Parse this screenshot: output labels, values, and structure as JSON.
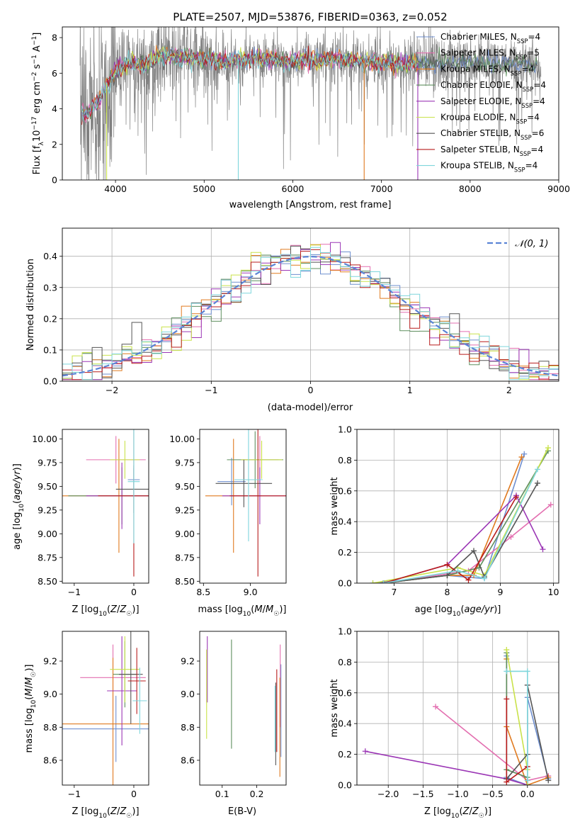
{
  "figure": {
    "title": "PLATE=2507, MJD=53876, FIBERID=0363, z=0.052"
  },
  "models": [
    {
      "name": "Chabrier MILES",
      "nssp": "4",
      "color": "#6f8fcf"
    },
    {
      "name": "Salpeter MILES",
      "nssp": "5",
      "color": "#e36fb0"
    },
    {
      "name": "Kroupa MILES",
      "nssp": "4",
      "color": "#e07a1f"
    },
    {
      "name": "Chabrier ELODIE",
      "nssp": "4",
      "color": "#5f8f5f"
    },
    {
      "name": "Salpeter ELODIE",
      "nssp": "4",
      "color": "#9b36b5"
    },
    {
      "name": "Kroupa ELODIE",
      "nssp": "4",
      "color": "#c9e24a"
    },
    {
      "name": "Chabrier STELIB",
      "nssp": "6",
      "color": "#555555"
    },
    {
      "name": "Salpeter STELIB",
      "nssp": "4",
      "color": "#b81c1c"
    },
    {
      "name": "Kroupa STELIB",
      "nssp": "4",
      "color": "#7fd6dc"
    }
  ],
  "chart_data": [
    {
      "id": "spectrum",
      "type": "line",
      "title": "PLATE=2507, MJD=53876, FIBERID=0363, z=0.052",
      "xlabel": "wavelength [Angstrom, rest frame]",
      "ylabel": "Flux [f_λ 10^-17 erg cm^-2 s^-1 A^-1]",
      "xlim": [
        3400,
        9000
      ],
      "ylim": [
        0,
        8.6
      ],
      "xticks": [
        4000,
        5000,
        6000,
        7000,
        8000,
        9000
      ],
      "yticks": [
        0,
        2,
        4,
        6,
        8
      ],
      "data_color": "#808080",
      "model_color": "#7fd6dc",
      "data_range": [
        3600,
        8800
      ],
      "continuum": [
        [
          3600,
          3.6
        ],
        [
          3700,
          3.9
        ],
        [
          3800,
          4.4
        ],
        [
          3900,
          5.4
        ],
        [
          4000,
          6.1
        ],
        [
          4100,
          6.5
        ],
        [
          4200,
          6.7
        ],
        [
          4300,
          6.5
        ],
        [
          4400,
          6.8
        ],
        [
          4500,
          7.0
        ],
        [
          4600,
          7.0
        ],
        [
          4700,
          6.9
        ],
        [
          4800,
          7.0
        ],
        [
          4900,
          6.8
        ],
        [
          5000,
          6.8
        ],
        [
          5100,
          6.9
        ],
        [
          5200,
          6.6
        ],
        [
          5300,
          6.7
        ],
        [
          5400,
          6.8
        ],
        [
          5500,
          6.9
        ],
        [
          5600,
          6.9
        ],
        [
          5700,
          6.8
        ],
        [
          5800,
          6.8
        ],
        [
          5900,
          6.7
        ],
        [
          6000,
          6.7
        ],
        [
          6100,
          6.8
        ],
        [
          6200,
          6.8
        ],
        [
          6300,
          6.7
        ],
        [
          6400,
          6.8
        ],
        [
          6500,
          6.8
        ],
        [
          6600,
          6.8
        ],
        [
          6700,
          6.7
        ],
        [
          6800,
          6.7
        ],
        [
          6900,
          6.7
        ],
        [
          7000,
          6.6
        ],
        [
          7100,
          6.6
        ],
        [
          7200,
          6.6
        ],
        [
          7400,
          6.6
        ],
        [
          7600,
          6.6
        ],
        [
          7800,
          6.6
        ],
        [
          8000,
          6.6
        ],
        [
          8200,
          6.6
        ],
        [
          8400,
          6.5
        ],
        [
          8600,
          6.5
        ],
        [
          8800,
          6.4
        ]
      ],
      "legend_position": "upper right",
      "grid": false
    },
    {
      "id": "residuals",
      "type": "line",
      "xlabel": "(data-model)/error",
      "ylabel": "Normed distribution",
      "xlim": [
        -2.5,
        2.5
      ],
      "ylim": [
        0,
        0.49
      ],
      "xticks": [
        -2,
        -1,
        0,
        1,
        2
      ],
      "yticks": [
        0.0,
        0.1,
        0.2,
        0.3,
        0.4
      ],
      "bin_width": 0.1,
      "reference_curve": "gaussian(0,1)",
      "reference_label": "𝒩(0, 1)",
      "reference_color": "#5b84d6",
      "legend_position": "upper right",
      "grid": true
    },
    {
      "id": "age_vs_Z",
      "type": "scatter",
      "xlabel": "Z [log10(Z/Z☉)]",
      "ylabel": "age  [log10(age/yr)]",
      "xlim": [
        -1.2,
        0.25
      ],
      "ylim": [
        8.48,
        10.1
      ],
      "xticks": [
        -1,
        0
      ],
      "yticks": [
        8.5,
        8.75,
        9.0,
        9.25,
        9.5,
        9.75,
        10.0
      ],
      "points": [
        {
          "x": 0.0,
          "y": 9.57,
          "xerr": 0.1,
          "yerr": 0.12
        },
        {
          "x": -0.3,
          "y": 9.78,
          "xerr": 0.5,
          "yerr": 0.25
        },
        {
          "x": -0.25,
          "y": 9.4,
          "xerr": 1.0,
          "yerr": 0.6
        },
        {
          "x": -0.2,
          "y": 9.4,
          "xerr": 0.9,
          "yerr": 0.3
        },
        {
          "x": -0.2,
          "y": 9.4,
          "xerr": 0.6,
          "yerr": 0.35
        },
        {
          "x": -0.15,
          "y": 9.78,
          "xerr": 0.25,
          "yerr": 0.2
        },
        {
          "x": 0.0,
          "y": 9.47,
          "xerr": 0.3,
          "yerr": 0.25
        },
        {
          "x": 0.0,
          "y": 9.4,
          "xerr": 0.6,
          "yerr": 0.85
        },
        {
          "x": 0.0,
          "y": 9.55,
          "xerr": 0.1,
          "yerr": 0.65
        }
      ],
      "grid": false
    },
    {
      "id": "age_vs_mass",
      "type": "scatter",
      "xlabel": "mass [log10(M/M☉)]",
      "ylabel": "",
      "xlim": [
        8.46,
        9.38
      ],
      "ylim": [
        8.48,
        10.1
      ],
      "xticks": [
        8.5,
        9.0
      ],
      "yticks": [
        8.5,
        8.75,
        9.0,
        9.25,
        9.5,
        9.75,
        10.0
      ],
      "points": [
        {
          "x": 8.8,
          "y": 9.55,
          "xerr": 0.15,
          "yerr": 0.25
        },
        {
          "x": 9.1,
          "y": 9.78,
          "xerr": 0.2,
          "yerr": 0.25
        },
        {
          "x": 8.82,
          "y": 9.4,
          "xerr": 0.3,
          "yerr": 0.6
        },
        {
          "x": 9.05,
          "y": 9.78,
          "xerr": 0.3,
          "yerr": 0.3
        },
        {
          "x": 9.1,
          "y": 9.4,
          "xerr": 0.4,
          "yerr": 0.3
        },
        {
          "x": 9.12,
          "y": 9.78,
          "xerr": 0.22,
          "yerr": 0.2
        },
        {
          "x": 8.93,
          "y": 9.53,
          "xerr": 0.3,
          "yerr": 0.25
        },
        {
          "x": 9.08,
          "y": 9.4,
          "xerr": 0.3,
          "yerr": 0.85
        },
        {
          "x": 8.98,
          "y": 9.57,
          "xerr": 0.15,
          "yerr": 0.65
        }
      ],
      "grid": false
    },
    {
      "id": "weight_vs_age",
      "type": "line",
      "xlabel": "age  [log10(age/yr)]",
      "ylabel": "mass weight",
      "xlim": [
        6.3,
        10.1
      ],
      "ylim": [
        0,
        1.0
      ],
      "xticks": [
        7,
        8,
        9,
        10
      ],
      "yticks": [
        0.0,
        0.2,
        0.4,
        0.6,
        0.8,
        1.0
      ],
      "series": [
        {
          "x": [
            6.6,
            8.0,
            8.7,
            9.45
          ],
          "y": [
            0.0,
            0.05,
            0.03,
            0.84
          ]
        },
        {
          "x": [
            6.8,
            8.4,
            9.2,
            9.95
          ],
          "y": [
            0.0,
            0.08,
            0.3,
            0.51
          ]
        },
        {
          "x": [
            6.8,
            8.0,
            8.5,
            9.4
          ],
          "y": [
            0.0,
            0.05,
            0.05,
            0.82
          ]
        },
        {
          "x": [
            6.8,
            8.0,
            8.6,
            9.9
          ],
          "y": [
            0.0,
            0.05,
            0.1,
            0.86
          ]
        },
        {
          "x": [
            6.8,
            8.0,
            9.3,
            9.8
          ],
          "y": [
            0.0,
            0.12,
            0.57,
            0.22
          ]
        },
        {
          "x": [
            6.6,
            8.2,
            8.7,
            9.9
          ],
          "y": [
            0.0,
            0.1,
            0.05,
            0.88
          ]
        },
        {
          "x": [
            6.8,
            8.0,
            8.5,
            8.7,
            9.7
          ],
          "y": [
            0.0,
            0.05,
            0.21,
            0.04,
            0.65
          ]
        },
        {
          "x": [
            6.8,
            8.0,
            8.4,
            9.3
          ],
          "y": [
            0.0,
            0.12,
            0.02,
            0.56
          ]
        },
        {
          "x": [
            6.8,
            8.2,
            8.7,
            9.7
          ],
          "y": [
            0.0,
            0.08,
            0.03,
            0.74
          ]
        }
      ],
      "grid": true
    },
    {
      "id": "mass_vs_Z",
      "type": "scatter",
      "xlabel": "Z [log10(Z/Z☉)]",
      "ylabel": "mass [log10(M/M☉)]",
      "xlim": [
        -1.2,
        0.25
      ],
      "ylim": [
        8.45,
        9.38
      ],
      "xticks": [
        -1,
        0
      ],
      "yticks": [
        8.6,
        8.8,
        9.0,
        9.2
      ],
      "points": [
        {
          "x": -0.3,
          "y": 8.79,
          "xerr": 0.9,
          "yerr": 0.2
        },
        {
          "x": -0.35,
          "y": 9.1,
          "xerr": 0.55,
          "yerr": 0.2
        },
        {
          "x": -0.35,
          "y": 8.82,
          "xerr": 0.85,
          "yerr": 0.4
        },
        {
          "x": -0.15,
          "y": 9.12,
          "xerr": 0.2,
          "yerr": 0.2
        },
        {
          "x": -0.2,
          "y": 9.02,
          "xerr": 0.25,
          "yerr": 0.33
        },
        {
          "x": -0.15,
          "y": 9.15,
          "xerr": 0.25,
          "yerr": 0.2
        },
        {
          "x": -0.05,
          "y": 9.12,
          "xerr": 0.2,
          "yerr": 0.3
        },
        {
          "x": 0.05,
          "y": 9.08,
          "xerr": 0.15,
          "yerr": 0.2
        },
        {
          "x": 0.1,
          "y": 8.96,
          "xerr": 0.12,
          "yerr": 0.2
        }
      ],
      "grid": false
    },
    {
      "id": "mass_vs_EBV",
      "type": "scatter",
      "xlabel": "E(B-V)",
      "ylabel": "",
      "xlim": [
        0.035,
        0.285
      ],
      "ylim": [
        8.45,
        9.38
      ],
      "xticks": [
        0.1,
        0.2
      ],
      "yticks": [
        8.6,
        8.8,
        9.0,
        9.2
      ],
      "points": [
        {
          "x": 0.27,
          "y": 8.9,
          "yerr": 0.28
        },
        {
          "x": 0.268,
          "y": 9.05,
          "yerr": 0.25
        },
        {
          "x": 0.267,
          "y": 8.8,
          "yerr": 0.3
        },
        {
          "x": 0.127,
          "y": 9.0,
          "yerr": 0.33
        },
        {
          "x": 0.057,
          "y": 9.15,
          "yerr": 0.2
        },
        {
          "x": 0.055,
          "y": 9.0,
          "yerr": 0.27
        },
        {
          "x": 0.255,
          "y": 8.82,
          "yerr": 0.25
        },
        {
          "x": 0.258,
          "y": 8.9,
          "yerr": 0.25
        },
        {
          "x": 0.253,
          "y": 8.85,
          "yerr": 0.2
        }
      ],
      "grid": false
    },
    {
      "id": "weight_vs_Z",
      "type": "line",
      "xlabel": "Z [log10(Z/Z☉)]",
      "ylabel": "mass weight",
      "xlim": [
        -2.45,
        0.45
      ],
      "ylim": [
        0,
        1.0
      ],
      "xticks": [
        -2.0,
        -1.5,
        -1.0,
        -0.5,
        0.0
      ],
      "yticks": [
        0.0,
        0.2,
        0.4,
        0.6,
        0.8,
        1.0
      ],
      "series": [
        {
          "x": [
            -0.3,
            -0.3,
            0.0,
            0.0,
            0.3
          ],
          "y": [
            0.84,
            0.05,
            0.0,
            0.57,
            0.04
          ]
        },
        {
          "x": [
            -1.32,
            0.0,
            0.3
          ],
          "y": [
            0.51,
            0.03,
            0.06
          ]
        },
        {
          "x": [
            -0.3,
            -0.3,
            0.0,
            0.3
          ],
          "y": [
            0.82,
            0.38,
            0.0,
            0.05
          ]
        },
        {
          "x": [
            -0.3,
            -0.3,
            0.0,
            0.0
          ],
          "y": [
            0.86,
            0.1,
            0.05,
            0.0
          ]
        },
        {
          "x": [
            -2.33,
            -0.3,
            0.0
          ],
          "y": [
            0.22,
            0.04,
            0.0
          ]
        },
        {
          "x": [
            -0.3,
            0.0,
            0.0
          ],
          "y": [
            0.88,
            0.1,
            0.0
          ]
        },
        {
          "x": [
            -0.3,
            0.0,
            0.0,
            0.3
          ],
          "y": [
            0.04,
            0.2,
            0.65,
            0.03
          ]
        },
        {
          "x": [
            -0.3,
            -0.3,
            0.0
          ],
          "y": [
            0.56,
            0.02,
            0.12
          ]
        },
        {
          "x": [
            -0.3,
            0.0,
            0.0
          ],
          "y": [
            0.74,
            0.74,
            0.03
          ]
        }
      ],
      "grid": true
    }
  ]
}
